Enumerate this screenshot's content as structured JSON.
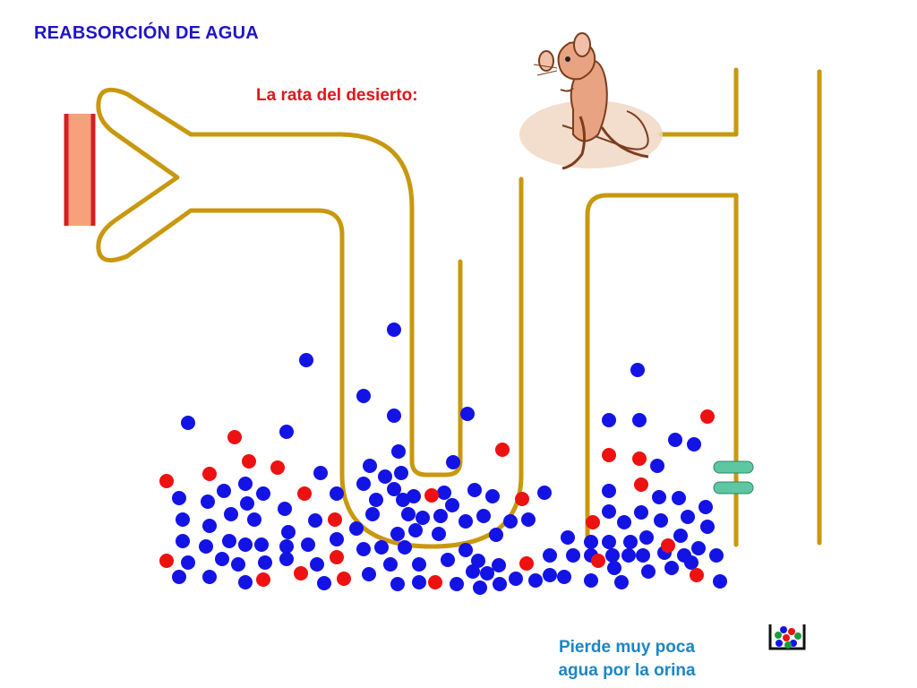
{
  "slide": {
    "title": "REABSORCIÓN DE AGUA",
    "subtitle": "La rata del desierto:",
    "caption_lines": [
      "Pierde muy poca",
      "agua por la orina"
    ]
  },
  "colors": {
    "title": "#1f14c8",
    "subtitle": "#e1161b",
    "caption": "#1c86c4",
    "tube_outline": "#c8980e",
    "blue_particle": "#1313e6",
    "red_particle": "#ee1111",
    "capillary_fill": "#f7a07c",
    "capillary_stroke": "#d42020",
    "channel": "#5ec6a0"
  },
  "icons": [
    "desert-rat-icon",
    "beaker-icon",
    "capillary-icon",
    "channel-icon"
  ]
}
